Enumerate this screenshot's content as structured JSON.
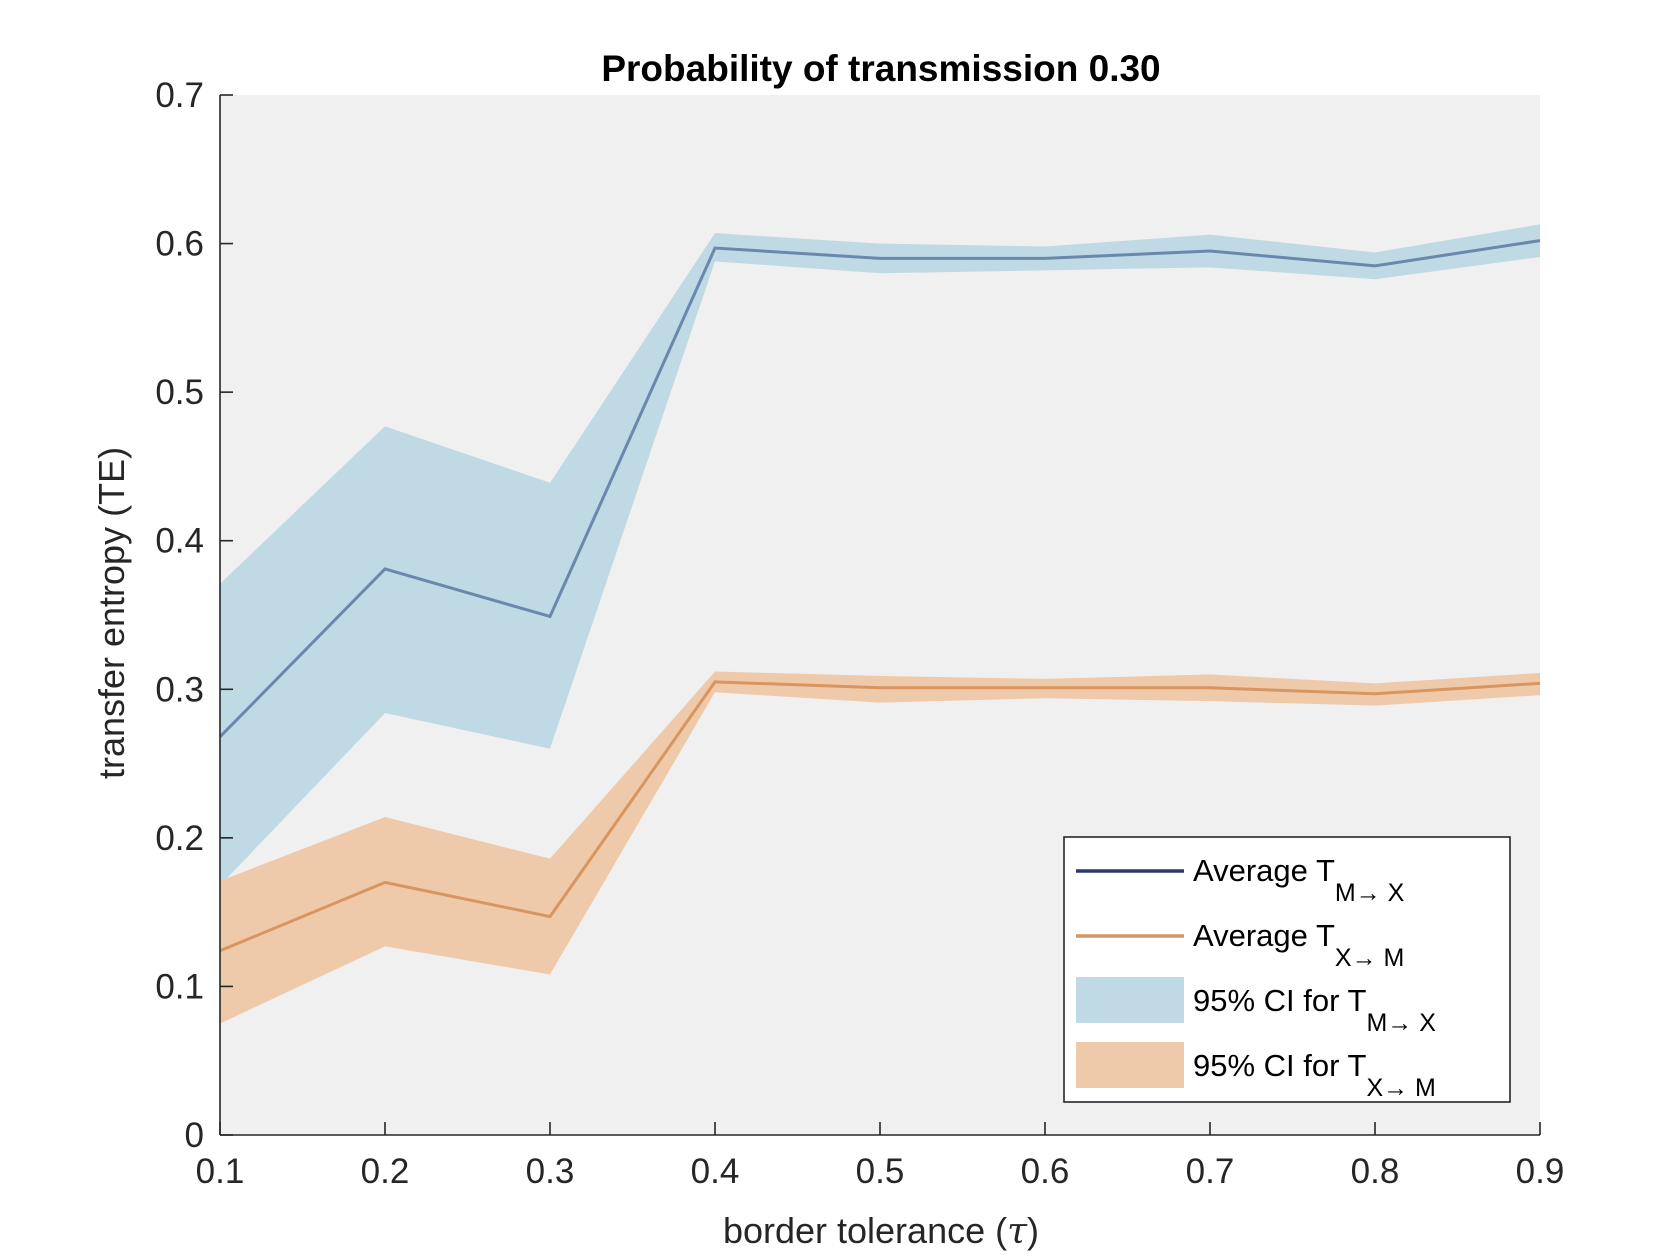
{
  "chart_data": {
    "type": "line",
    "title": "Probability of transmission 0.30",
    "xlabel": "border tolerance",
    "xlabel_symbol": "τ",
    "ylabel": "transfer entropy (TE)",
    "xlim": [
      0.1,
      0.9
    ],
    "ylim": [
      0,
      0.7
    ],
    "x_ticks": [
      "0.1",
      "0.2",
      "0.3",
      "0.4",
      "0.5",
      "0.6",
      "0.7",
      "0.8",
      "0.9"
    ],
    "y_ticks": [
      "0",
      "0.1",
      "0.2",
      "0.3",
      "0.4",
      "0.5",
      "0.6",
      "0.7"
    ],
    "x": [
      0.1,
      0.2,
      0.3,
      0.4,
      0.5,
      0.6,
      0.7,
      0.8,
      0.9
    ],
    "series": [
      {
        "key": "m_to_x",
        "mean": [
          0.268,
          0.381,
          0.349,
          0.597,
          0.59,
          0.59,
          0.595,
          0.585,
          0.602
        ],
        "ci_lower": [
          0.168,
          0.284,
          0.26,
          0.588,
          0.58,
          0.582,
          0.584,
          0.576,
          0.591
        ],
        "ci_upper": [
          0.371,
          0.477,
          0.439,
          0.607,
          0.6,
          0.598,
          0.606,
          0.594,
          0.613
        ],
        "line_color": "#6a88ad",
        "band_color": "#bfd9e5"
      },
      {
        "key": "x_to_m",
        "mean": [
          0.124,
          0.17,
          0.147,
          0.305,
          0.301,
          0.301,
          0.301,
          0.297,
          0.304
        ],
        "ci_lower": [
          0.075,
          0.127,
          0.108,
          0.298,
          0.291,
          0.294,
          0.292,
          0.289,
          0.296
        ],
        "ci_upper": [
          0.171,
          0.214,
          0.186,
          0.312,
          0.309,
          0.307,
          0.31,
          0.304,
          0.311
        ],
        "line_color": "#d8955f",
        "band_color": "#efcaaa"
      }
    ],
    "legend": {
      "placement": "bottom-right",
      "entries": [
        {
          "prefix": "Average T",
          "subscript": "M→ X",
          "kind": "line",
          "color": "#2b3a67"
        },
        {
          "prefix": "Average T",
          "subscript": "X→ M",
          "kind": "line",
          "color": "#d8955f"
        },
        {
          "prefix": "95% CI for T",
          "subscript": "M→ X",
          "kind": "patch",
          "color": "#bfd9e5"
        },
        {
          "prefix": "95% CI for T",
          "subscript": "X→ M",
          "kind": "patch",
          "color": "#efcaaa"
        }
      ]
    },
    "plot_background": "#f0f0f0",
    "grid": false
  }
}
